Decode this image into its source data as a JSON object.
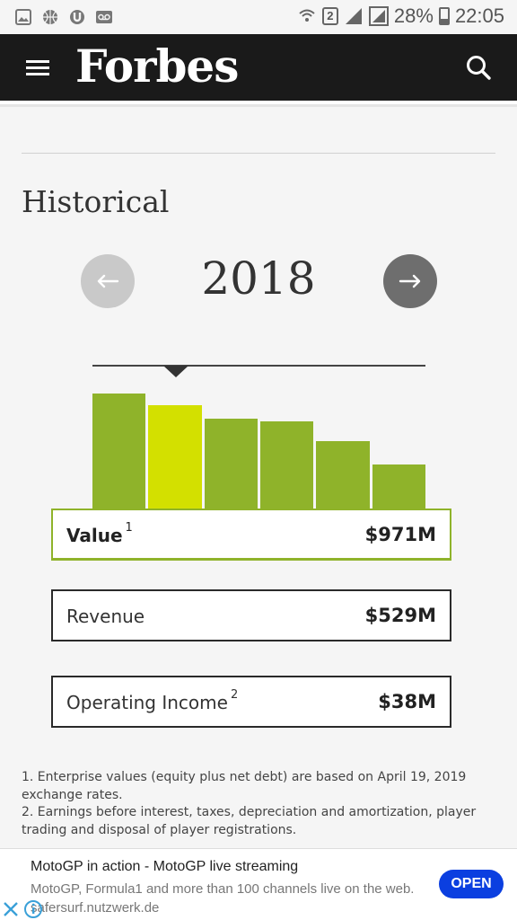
{
  "status_bar": {
    "left_icons": [
      "image-icon",
      "basketball-icon",
      "torrent-icon",
      "voicemail-icon"
    ],
    "sim_badge": "2",
    "battery": "28%",
    "time": "22:05"
  },
  "header": {
    "logo": "Forbes",
    "background": "#1a1a1a"
  },
  "section": {
    "title": "Historical",
    "year": "2018",
    "prev_icon": "arrow-left-icon",
    "next_icon": "arrow-right-icon"
  },
  "chart_data": {
    "type": "bar",
    "values": [
      100,
      90,
      78,
      76,
      59,
      39
    ],
    "highlight_index": 1,
    "colors": {
      "bar": "#8fb32a",
      "highlight": "#d3e000"
    },
    "xlabel": "",
    "ylabel": ""
  },
  "metrics": [
    {
      "label": "Value",
      "sup": "1",
      "value": "$971M",
      "active": true
    },
    {
      "label": "Revenue",
      "sup": "",
      "value": "$529M",
      "active": false
    },
    {
      "label": "Operating Income",
      "sup": "2",
      "value": "$38M",
      "active": false
    }
  ],
  "footnotes": [
    "1. Enterprise values (equity plus net debt) are based on April 19, 2019 exchange rates.",
    "2. Earnings before interest, taxes, depreciation and amortization, player trading and disposal of player registrations."
  ],
  "ad": {
    "title": "MotoGP in action - MotoGP live streaming",
    "description": "MotoGP, Formula1 and more than 100 channels live on the web. safersurf.nutzwerk.de",
    "button": "OPEN"
  }
}
